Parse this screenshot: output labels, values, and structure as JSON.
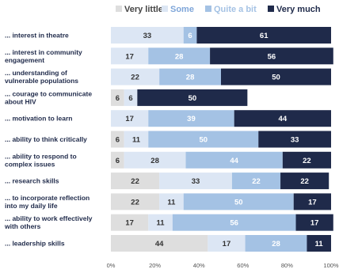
{
  "chart_data": {
    "type": "bar",
    "stacked": true,
    "percent_stacked": true,
    "orientation": "horizontal",
    "title": "",
    "xlabel": "",
    "ylabel": "",
    "xlim": [
      0,
      100
    ],
    "x_ticks": [
      "0%",
      "20%",
      "40%",
      "60%",
      "80%",
      "100%"
    ],
    "legend_position": "top",
    "grid": false,
    "categories": [
      [
        "... interest in theatre"
      ],
      [
        "... interest in community",
        "engagement"
      ],
      [
        "... understanding of",
        "vulnerable populations"
      ],
      [
        "... courage to communicate",
        "about HIV"
      ],
      [
        "... motivation to learn"
      ],
      [
        "... ability to think critically"
      ],
      [
        "... ability to respond to",
        "complex issues"
      ],
      [
        "... research skills"
      ],
      [
        "... to incorporate reflection",
        "into my daily life"
      ],
      [
        "... ability to work effectively",
        "with others"
      ],
      [
        "... leadership skills"
      ]
    ],
    "series": [
      {
        "name": "Very little",
        "color": "#dedede",
        "text_color": "#333333",
        "values": [
          0,
          0,
          0,
          6,
          0,
          6,
          6,
          22,
          22,
          17,
          44
        ]
      },
      {
        "name": "Some",
        "color": "#dce6f4",
        "text_color": "#333333",
        "values": [
          33,
          17,
          22,
          6,
          17,
          11,
          28,
          33,
          11,
          11,
          17
        ]
      },
      {
        "name": "Quite a bit",
        "color": "#a4c2e4",
        "text_color": "#ffffff",
        "values": [
          6,
          28,
          28,
          0,
          39,
          50,
          44,
          22,
          50,
          56,
          28
        ]
      },
      {
        "name": "Very much",
        "color": "#1f2a4a",
        "text_color": "#ffffff",
        "values": [
          61,
          56,
          50,
          50,
          44,
          33,
          22,
          22,
          17,
          17,
          11
        ]
      }
    ],
    "legend_text_colors": [
      "#444444",
      "#7fa6d9",
      "#a4c2e4",
      "#1f2a4a"
    ]
  }
}
